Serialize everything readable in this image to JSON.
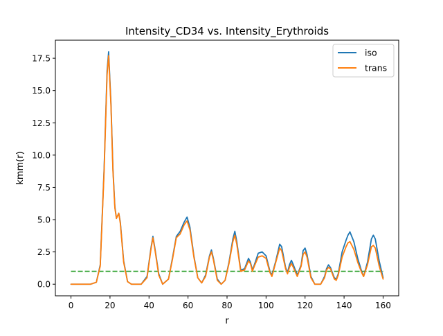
{
  "chart_data": {
    "type": "line",
    "title": "Intensity_CD34 vs. Intensity_Erythroids",
    "xlabel": "r",
    "ylabel": "kmm(r)",
    "xlim": [
      -8,
      168
    ],
    "ylim": [
      -0.9,
      18.9
    ],
    "xticks": [
      0,
      20,
      40,
      60,
      80,
      100,
      120,
      140,
      160
    ],
    "xtick_labels": [
      "0",
      "20",
      "40",
      "60",
      "80",
      "100",
      "120",
      "140",
      "160"
    ],
    "yticks": [
      0.0,
      2.5,
      5.0,
      7.5,
      10.0,
      12.5,
      15.0,
      17.5
    ],
    "ytick_labels": [
      "0.0",
      "2.5",
      "5.0",
      "7.5",
      "10.0",
      "12.5",
      "15.0",
      "17.5"
    ],
    "grid": false,
    "legend_position": "top-right",
    "series": [
      {
        "name": "iso",
        "color": "#1f77b4",
        "style": "solid",
        "points": [
          [
            0,
            0
          ],
          [
            5,
            0
          ],
          [
            10,
            0
          ],
          [
            13,
            0.15
          ],
          [
            15,
            1.5
          ],
          [
            17,
            9
          ],
          [
            18.5,
            16.5
          ],
          [
            19.3,
            18.0
          ],
          [
            20.5,
            14
          ],
          [
            21.5,
            9
          ],
          [
            22.5,
            6
          ],
          [
            23.3,
            5.1
          ],
          [
            24.5,
            5.5
          ],
          [
            25.3,
            4.8
          ],
          [
            27,
            1.8
          ],
          [
            29,
            0.2
          ],
          [
            31,
            0
          ],
          [
            36,
            0
          ],
          [
            39,
            0.6
          ],
          [
            41,
            2.8
          ],
          [
            42,
            3.7
          ],
          [
            43,
            2.8
          ],
          [
            45,
            0.8
          ],
          [
            47,
            0
          ],
          [
            50,
            0.4
          ],
          [
            52,
            2
          ],
          [
            54,
            3.7
          ],
          [
            56,
            4.1
          ],
          [
            58,
            4.8
          ],
          [
            59.5,
            5.2
          ],
          [
            61,
            4.4
          ],
          [
            63,
            2.2
          ],
          [
            65,
            0.5
          ],
          [
            67,
            0.1
          ],
          [
            69,
            0.7
          ],
          [
            71,
            2.2
          ],
          [
            72,
            2.65
          ],
          [
            73,
            2
          ],
          [
            75,
            0.4
          ],
          [
            77,
            0
          ],
          [
            79,
            0.3
          ],
          [
            81,
            1.7
          ],
          [
            83,
            3.5
          ],
          [
            84,
            4.1
          ],
          [
            85,
            3.3
          ],
          [
            87,
            1.1
          ],
          [
            89,
            1.2
          ],
          [
            91,
            2.0
          ],
          [
            92,
            1.7
          ],
          [
            93,
            1.1
          ],
          [
            94,
            1.5
          ],
          [
            96,
            2.4
          ],
          [
            98,
            2.5
          ],
          [
            100,
            2.2
          ],
          [
            102,
            1
          ],
          [
            103,
            0.7
          ],
          [
            105,
            1.8
          ],
          [
            107,
            3.1
          ],
          [
            108,
            2.9
          ],
          [
            110,
            1.3
          ],
          [
            111,
            0.9
          ],
          [
            112,
            1.5
          ],
          [
            113,
            1.85
          ],
          [
            114,
            1.5
          ],
          [
            116,
            0.7
          ],
          [
            118,
            1.5
          ],
          [
            119,
            2.6
          ],
          [
            120,
            2.8
          ],
          [
            121,
            2.3
          ],
          [
            123,
            0.6
          ],
          [
            125,
            0
          ],
          [
            128,
            0
          ],
          [
            130,
            0.6
          ],
          [
            131,
            1.2
          ],
          [
            132,
            1.5
          ],
          [
            133,
            1.3
          ],
          [
            135,
            0.5
          ],
          [
            136,
            0.4
          ],
          [
            137,
            0.8
          ],
          [
            139,
            2.5
          ],
          [
            141,
            3.4
          ],
          [
            142,
            3.8
          ],
          [
            143,
            4.05
          ],
          [
            145,
            3.3
          ],
          [
            147,
            2
          ],
          [
            149,
            1
          ],
          [
            150,
            0.6
          ],
          [
            152,
            1.7
          ],
          [
            154,
            3.5
          ],
          [
            155,
            3.8
          ],
          [
            156,
            3.5
          ],
          [
            158,
            1.8
          ],
          [
            160,
            0.5
          ]
        ]
      },
      {
        "name": "trans",
        "color": "#ff7f0e",
        "style": "solid",
        "points": [
          [
            0,
            0
          ],
          [
            5,
            0
          ],
          [
            10,
            0
          ],
          [
            13,
            0.15
          ],
          [
            15,
            1.4
          ],
          [
            17,
            8.8
          ],
          [
            18.5,
            16.2
          ],
          [
            19.3,
            17.7
          ],
          [
            20.5,
            13.8
          ],
          [
            21.5,
            8.8
          ],
          [
            22.5,
            5.9
          ],
          [
            23.3,
            5.1
          ],
          [
            24.5,
            5.5
          ],
          [
            25.3,
            4.7
          ],
          [
            27,
            1.7
          ],
          [
            29,
            0.2
          ],
          [
            31,
            0
          ],
          [
            36,
            0
          ],
          [
            39,
            0.5
          ],
          [
            41,
            2.7
          ],
          [
            42,
            3.6
          ],
          [
            43,
            2.7
          ],
          [
            45,
            0.7
          ],
          [
            47,
            0
          ],
          [
            50,
            0.4
          ],
          [
            52,
            1.9
          ],
          [
            54,
            3.6
          ],
          [
            56,
            3.9
          ],
          [
            58,
            4.6
          ],
          [
            59.5,
            4.9
          ],
          [
            61,
            4.2
          ],
          [
            63,
            2.1
          ],
          [
            65,
            0.5
          ],
          [
            67,
            0.1
          ],
          [
            69,
            0.6
          ],
          [
            71,
            2.1
          ],
          [
            72,
            2.5
          ],
          [
            73,
            1.9
          ],
          [
            75,
            0.3
          ],
          [
            77,
            0
          ],
          [
            79,
            0.3
          ],
          [
            81,
            1.6
          ],
          [
            83,
            3.3
          ],
          [
            84,
            3.8
          ],
          [
            85,
            3.1
          ],
          [
            87,
            1.0
          ],
          [
            89,
            1.1
          ],
          [
            91,
            1.8
          ],
          [
            92,
            1.6
          ],
          [
            93,
            1.0
          ],
          [
            94,
            1.4
          ],
          [
            96,
            2.1
          ],
          [
            98,
            2.2
          ],
          [
            100,
            2.0
          ],
          [
            102,
            0.9
          ],
          [
            103,
            0.6
          ],
          [
            105,
            1.7
          ],
          [
            107,
            2.8
          ],
          [
            108,
            2.6
          ],
          [
            110,
            1.2
          ],
          [
            111,
            0.8
          ],
          [
            112,
            1.3
          ],
          [
            113,
            1.6
          ],
          [
            114,
            1.3
          ],
          [
            116,
            0.6
          ],
          [
            118,
            1.4
          ],
          [
            119,
            2.3
          ],
          [
            120,
            2.5
          ],
          [
            121,
            2.1
          ],
          [
            123,
            0.5
          ],
          [
            125,
            0
          ],
          [
            128,
            0
          ],
          [
            130,
            0.5
          ],
          [
            131,
            1.1
          ],
          [
            132,
            1.3
          ],
          [
            133,
            1.2
          ],
          [
            135,
            0.4
          ],
          [
            136,
            0.3
          ],
          [
            137,
            0.7
          ],
          [
            139,
            2.1
          ],
          [
            141,
            2.9
          ],
          [
            142,
            3.2
          ],
          [
            143,
            3.3
          ],
          [
            145,
            2.7
          ],
          [
            147,
            1.7
          ],
          [
            149,
            0.9
          ],
          [
            150,
            0.6
          ],
          [
            152,
            1.5
          ],
          [
            154,
            2.9
          ],
          [
            155,
            3.0
          ],
          [
            156,
            2.8
          ],
          [
            158,
            1.4
          ],
          [
            160,
            0.4
          ]
        ]
      },
      {
        "color": "#2ca02c",
        "style": "dashed",
        "points": [
          [
            0,
            1
          ],
          [
            160,
            1
          ]
        ]
      }
    ]
  }
}
